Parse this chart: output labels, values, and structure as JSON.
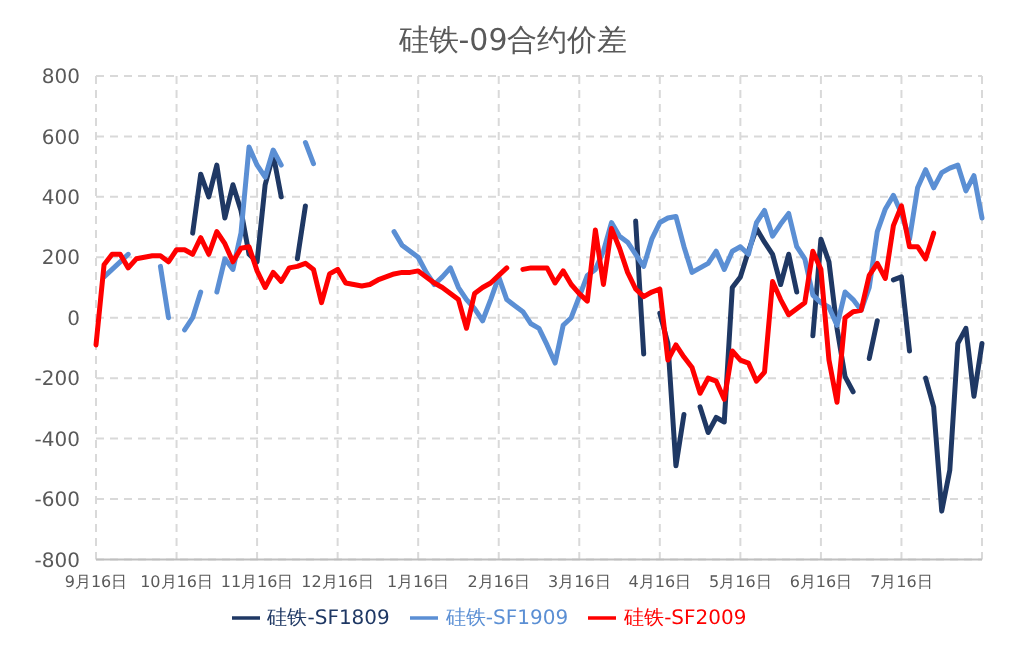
{
  "chart_data": {
    "type": "line",
    "title": "硅铁-09合约价差",
    "categories": [
      "9月16日",
      null,
      null,
      null,
      null,
      null,
      null,
      null,
      null,
      null,
      "10月16日",
      null,
      null,
      null,
      null,
      null,
      null,
      null,
      null,
      null,
      "11月16日",
      null,
      null,
      null,
      null,
      null,
      null,
      null,
      null,
      null,
      "12月16日",
      null,
      null,
      null,
      null,
      null,
      null,
      null,
      null,
      null,
      "1月16日",
      null,
      null,
      null,
      null,
      null,
      null,
      null,
      null,
      null,
      "2月16日",
      null,
      null,
      null,
      null,
      null,
      null,
      null,
      null,
      null,
      "3月16日",
      null,
      null,
      null,
      null,
      null,
      null,
      null,
      null,
      null,
      "4月16日",
      null,
      null,
      null,
      null,
      null,
      null,
      null,
      null,
      null,
      "5月16日",
      null,
      null,
      null,
      null,
      null,
      null,
      null,
      null,
      null,
      "6月16日",
      null,
      null,
      null,
      null,
      null,
      null,
      null,
      null,
      null,
      "7月16日",
      null,
      null,
      null,
      null,
      null,
      null,
      null,
      null,
      null,
      null
    ],
    "ylim": [
      -800,
      800
    ],
    "yticks": [
      -800,
      -600,
      -400,
      -200,
      0,
      200,
      400,
      600,
      800
    ],
    "grid": true,
    "legend": "bottom",
    "marker": "none",
    "line_style": "solid",
    "series": [
      {
        "name": "硅铁-SF1809",
        "color": "#1f3864",
        "values": [
          null,
          null,
          null,
          null,
          null,
          null,
          null,
          null,
          null,
          null,
          null,
          null,
          280,
          475,
          400,
          505,
          330,
          440,
          355,
          210,
          185,
          440,
          540,
          400,
          null,
          195,
          370,
          null,
          null,
          null,
          null,
          null,
          null,
          null,
          null,
          null,
          null,
          null,
          null,
          null,
          null,
          null,
          null,
          null,
          null,
          null,
          null,
          null,
          null,
          null,
          null,
          null,
          null,
          null,
          null,
          null,
          null,
          null,
          null,
          null,
          null,
          null,
          null,
          null,
          null,
          null,
          null,
          320,
          -120,
          null,
          15,
          -85,
          -490,
          -320,
          null,
          -295,
          -380,
          -330,
          -345,
          100,
          135,
          220,
          295,
          250,
          210,
          110,
          210,
          85,
          null,
          -60,
          260,
          185,
          -35,
          -195,
          -245,
          null,
          -135,
          -10,
          null,
          125,
          135,
          -110,
          null,
          -200,
          -295,
          -640,
          -505,
          -85,
          -35,
          -260,
          -85
        ]
      },
      {
        "name": "硅铁-SF1909",
        "color": "#5b8fd4",
        "values": [
          null,
          135,
          160,
          185,
          210,
          null,
          null,
          null,
          170,
          0,
          null,
          -40,
          0,
          85,
          null,
          85,
          195,
          160,
          280,
          565,
          505,
          465,
          555,
          505,
          null,
          null,
          580,
          510,
          null,
          null,
          null,
          null,
          null,
          null,
          null,
          null,
          null,
          285,
          240,
          220,
          200,
          150,
          110,
          135,
          165,
          100,
          60,
          30,
          -10,
          60,
          135,
          60,
          40,
          20,
          -20,
          -35,
          -90,
          -150,
          -25,
          0,
          70,
          140,
          160,
          220,
          315,
          270,
          250,
          210,
          170,
          260,
          315,
          330,
          335,
          235,
          150,
          165,
          180,
          220,
          160,
          220,
          235,
          210,
          315,
          355,
          270,
          310,
          345,
          235,
          195,
          75,
          50,
          35,
          -25,
          85,
          60,
          25,
          100,
          285,
          360,
          405,
          345,
          260,
          430,
          490,
          430,
          480,
          495,
          505,
          420,
          470,
          330
        ]
      },
      {
        "name": "硅铁-SF2009",
        "color": "#ff0000",
        "values": [
          -90,
          175,
          210,
          210,
          165,
          195,
          200,
          205,
          205,
          185,
          225,
          225,
          210,
          265,
          210,
          285,
          245,
          185,
          230,
          235,
          155,
          100,
          150,
          120,
          165,
          170,
          180,
          160,
          50,
          145,
          160,
          115,
          110,
          105,
          110,
          125,
          135,
          145,
          150,
          150,
          155,
          135,
          115,
          100,
          80,
          60,
          -35,
          80,
          100,
          115,
          140,
          165,
          null,
          160,
          165,
          165,
          165,
          115,
          155,
          110,
          80,
          55,
          290,
          110,
          295,
          230,
          150,
          95,
          70,
          85,
          95,
          -140,
          -90,
          -130,
          -165,
          -250,
          -200,
          -210,
          -270,
          -110,
          -140,
          -150,
          -210,
          -180,
          120,
          60,
          10,
          30,
          50,
          220,
          160,
          -140,
          -280,
          0,
          20,
          25,
          140,
          180,
          130,
          305,
          370,
          235,
          235,
          195,
          280,
          null,
          null,
          null,
          null,
          null,
          null
        ]
      }
    ]
  }
}
